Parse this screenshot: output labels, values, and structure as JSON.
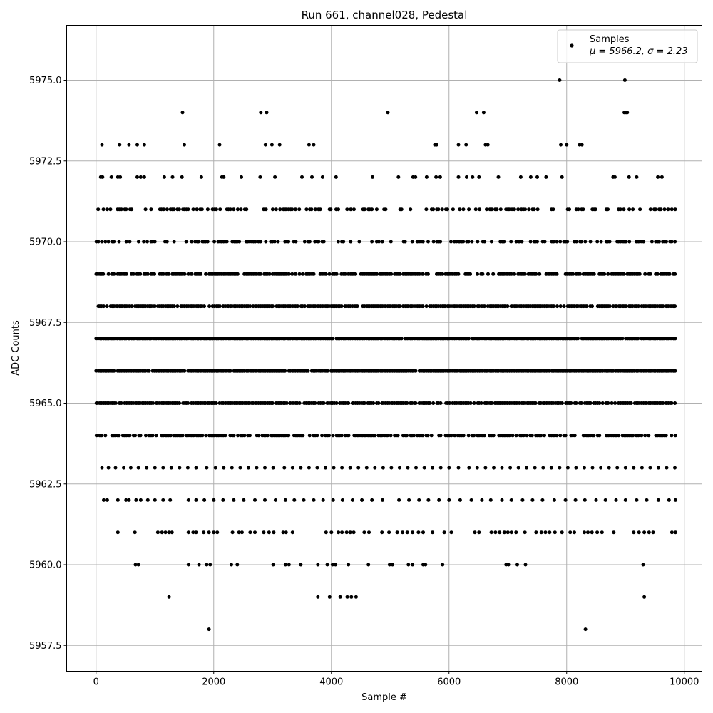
{
  "chart_data": {
    "type": "scatter",
    "title": "Run 661, channel028, Pedestal",
    "xlabel": "Sample #",
    "ylabel": "ADC Counts",
    "xlim": [
      -500,
      10300
    ],
    "ylim": [
      5956.7,
      5976.7
    ],
    "x_ticks": [
      0,
      2000,
      4000,
      6000,
      8000,
      10000
    ],
    "x_tick_labels": [
      "0",
      "2000",
      "4000",
      "6000",
      "8000",
      "10000"
    ],
    "y_ticks": [
      5957.5,
      5960.0,
      5962.5,
      5965.0,
      5967.5,
      5970.0,
      5972.5,
      5975.0
    ],
    "y_tick_labels": [
      "5957.5",
      "5960.0",
      "5962.5",
      "5965.0",
      "5967.5",
      "5970.0",
      "5972.5",
      "5975.0"
    ],
    "grid": true,
    "legend_position": "top-right",
    "marker_color": "#000000",
    "series": [
      {
        "name": "Samples",
        "stats_label": "μ = 5966.2, σ = 2.23",
        "x_range": [
          0,
          9850
        ],
        "levels": [
          {
            "y": 5958,
            "x": [
              1920,
              8320
            ]
          },
          {
            "y": 5959,
            "x": [
              1240,
              3770,
              3970,
              4150,
              4270,
              4340,
              4420,
              9320
            ]
          },
          {
            "y": 5960,
            "x": [
              670,
              720,
              1570,
              1750,
              1880,
              1940,
              2300,
              2400,
              3010,
              3220,
              3280,
              3480,
              3770,
              3930,
              4020,
              4070,
              4290,
              4630,
              4990,
              5040,
              5310,
              5380,
              5560,
              5600,
              5890,
              6970,
              7010,
              7160,
              7300,
              9300
            ]
          },
          {
            "y": 5975,
            "x": [
              7880,
              8990
            ]
          },
          {
            "y": 5974,
            "x": [
              1470,
              2800,
              2900,
              4960,
              6470,
              6590,
              8980,
              9010,
              9030
            ]
          },
          {
            "y": 5973,
            "x": [
              100,
              400,
              560,
              700,
              820,
              1500,
              2100,
              2880,
              2990,
              3120,
              3620,
              3700,
              5760,
              5790,
              6160,
              6290,
              6620,
              6660,
              7900,
              8000,
              8220,
              8260
            ]
          },
          {
            "y": 5972,
            "x": [
              80,
              110,
              260,
              370,
              410,
              700,
              760,
              820,
              1160,
              1300,
              1460,
              1790,
              2140,
              2170,
              2470,
              2790,
              3040,
              3500,
              3670,
              3850,
              4080,
              4700,
              5140,
              5390,
              5430,
              5620,
              5780,
              5850,
              6160,
              6300,
              6400,
              6510,
              6840,
              7220,
              7390,
              7500,
              7650,
              7920,
              8790,
              8820,
              9060,
              9190,
              9550,
              9620
            ]
          },
          {
            "y": 5961,
            "x": [
              370,
              660,
              1050,
              1120,
              1180,
              1240,
              1290,
              1570,
              1650,
              1700,
              1830,
              1920,
              2000,
              2060,
              2320,
              2430,
              2480,
              2620,
              2700,
              2850,
              2940,
              3020,
              3180,
              3230,
              3340,
              3910,
              4000,
              4120,
              4180,
              4260,
              4320,
              4380,
              4560,
              4640,
              4860,
              4980,
              5120,
              5210,
              5290,
              5380,
              5480,
              5560,
              5720,
              5920,
              6040,
              6440,
              6510,
              6720,
              6790,
              6860,
              6940,
              7000,
              7060,
              7140,
              7290,
              7480,
              7570,
              7640,
              7710,
              7800,
              7920,
              8060,
              8130,
              8300,
              8360,
              8430,
              8520,
              8600,
              8800,
              9140,
              9230,
              9320,
              9400,
              9470,
              9790,
              9850
            ]
          },
          {
            "y": 5962,
            "x": [
              130,
              190,
              370,
              510,
              560,
              680,
              760,
              880,
              1000,
              1140,
              1260,
              1570,
              1700,
              1840,
              2000,
              2160,
              2340,
              2510,
              2700,
              2870,
              3050,
              3220,
              3370,
              3530,
              3700,
              3860,
              4030,
              4190,
              4360,
              4520,
              4690,
              4870,
              5150,
              5320,
              5490,
              5650,
              5830,
              6000,
              6190,
              6380,
              6560,
              6710,
              6900,
              7060,
              7250,
              7420,
              7590,
              7790,
              7980,
              8150,
              8310,
              8500,
              8660,
              8840,
              9000,
              9190,
              9360,
              9560,
              9740,
              9850
            ]
          },
          {
            "y": 5963,
            "x": [
              100,
              210,
              330,
              470,
              590,
              720,
              860,
              1000,
              1140,
              1280,
              1420,
              1560,
              1700,
              1880,
              2030,
              2170,
              2310,
              2450,
              2590,
              2730,
              2870,
              3010,
              3200,
              3340,
              3480,
              3620,
              3760,
              3900,
              4040,
              4180,
              4320,
              4460,
              4600,
              4740,
              4880,
              5020,
              5160,
              5300,
              5440,
              5580,
              5720,
              5860,
              6000,
              6160,
              6340,
              6480,
              6620,
              6760,
              6900,
              7040,
              7180,
              7320,
              7460,
              7600,
              7740,
              7880,
              8020,
              8160,
              8300,
              8440,
              8580,
              8720,
              8860,
              9000,
              9140,
              9280,
              9420,
              9560,
              9700,
              9840
            ]
          }
        ],
        "dense_levels": [
          5964,
          5965,
          5966,
          5967,
          5968,
          5969,
          5970,
          5971
        ]
      }
    ]
  }
}
